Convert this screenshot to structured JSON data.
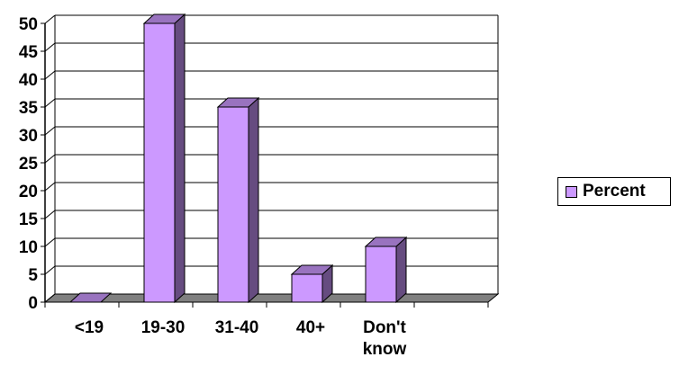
{
  "chart_data": {
    "type": "bar",
    "categories": [
      "<19",
      "19-30",
      "31-40",
      "40+",
      "Don't know"
    ],
    "category_lines": [
      [
        "<19"
      ],
      [
        "19-30"
      ],
      [
        "31-40"
      ],
      [
        "40+"
      ],
      [
        "Don't",
        "know"
      ]
    ],
    "series": [
      {
        "name": "Percent",
        "values": [
          0,
          50,
          35,
          5,
          10
        ]
      }
    ],
    "ylim": [
      0,
      50
    ],
    "yticks": [
      0,
      5,
      10,
      15,
      20,
      25,
      30,
      35,
      40,
      45,
      50
    ],
    "grid": true,
    "legend_position": "right",
    "three_d": true,
    "colors": {
      "bar_front": "#CC99FF",
      "bar_side": "#664C80",
      "bar_top": "#9973BF",
      "floor": "#808080",
      "grid": "#000000"
    }
  },
  "legend": {
    "label": "Percent"
  }
}
